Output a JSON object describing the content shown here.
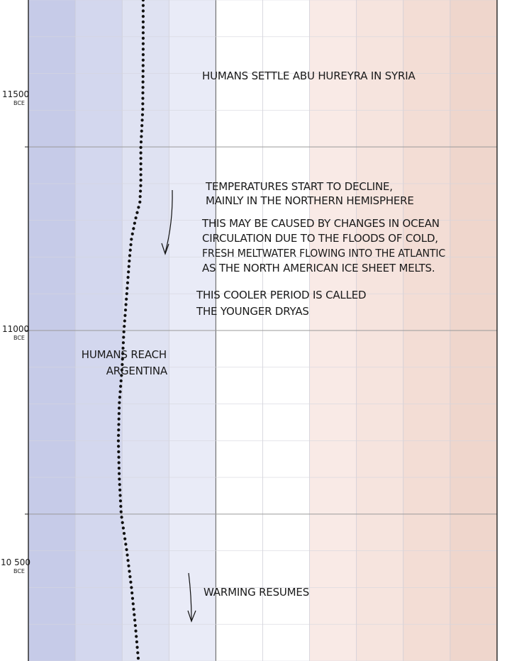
{
  "chart_data": {
    "type": "line",
    "title": "",
    "xlabel": "",
    "ylabel": "",
    "ylim": [
      10100,
      11900
    ],
    "xlim": [
      -4,
      6
    ],
    "y_ticks": [
      {
        "value": 11500,
        "label": "11500",
        "unit": "BCE"
      },
      {
        "value": 11000,
        "label": "11000",
        "unit": "BCE"
      },
      {
        "value": 10500,
        "label": "10 500",
        "unit": "BCE"
      }
    ],
    "band_colors": [
      "#c6cbe8",
      "#d3d7ee",
      "#dfe2f2",
      "#e9ebf7",
      "#ffffff",
      "#ffffff",
      "#f9eae6",
      "#f6e4de",
      "#f3ddd5",
      "#efd6cc"
    ],
    "line_color": "#111111",
    "series": [
      {
        "name": "",
        "points": [
          {
            "year": 11900,
            "t": -1.55
          },
          {
            "year": 11750,
            "t": -1.55
          },
          {
            "year": 11600,
            "t": -1.56
          },
          {
            "year": 11500,
            "t": -1.6
          },
          {
            "year": 11400,
            "t": -1.6
          },
          {
            "year": 11350,
            "t": -1.62
          },
          {
            "year": 11300,
            "t": -1.72
          },
          {
            "year": 11250,
            "t": -1.8
          },
          {
            "year": 11200,
            "t": -1.84
          },
          {
            "year": 11100,
            "t": -1.9
          },
          {
            "year": 11000,
            "t": -1.96
          },
          {
            "year": 10900,
            "t": -2.0
          },
          {
            "year": 10800,
            "t": -2.06
          },
          {
            "year": 10700,
            "t": -2.08
          },
          {
            "year": 10600,
            "t": -2.06
          },
          {
            "year": 10500,
            "t": -2.02
          },
          {
            "year": 10400,
            "t": -1.9
          },
          {
            "year": 10300,
            "t": -1.8
          },
          {
            "year": 10200,
            "t": -1.72
          },
          {
            "year": 10100,
            "t": -1.65
          }
        ]
      }
    ],
    "annotations": [
      {
        "id": "abu-hureyra",
        "lines": [
          "HUMANS SETTLE ABU HUREYRA IN SYRIA"
        ]
      },
      {
        "id": "decline",
        "lines": [
          "TEMPERATURES START TO DECLINE,",
          "MAINLY IN THE NORTHERN HEMISPHERE"
        ]
      },
      {
        "id": "ocean",
        "lines": [
          "THIS MAY BE CAUSED BY CHANGES IN OCEAN",
          "CIRCULATION DUE TO THE FLOODS OF COLD,",
          "FRESH MELTWATER FLOWING INTO THE ATLANTIC",
          "AS THE NORTH AMERICAN ICE SHEET MELTS."
        ]
      },
      {
        "id": "younger-dryas",
        "lines": [
          "THIS COOLER PERIOD IS CALLED",
          "THE YOUNGER DRYAS"
        ]
      },
      {
        "id": "argentina",
        "lines": [
          "HUMANS REACH",
          "ARGENTINA"
        ]
      },
      {
        "id": "warming",
        "lines": [
          "WARMING RESUMES"
        ]
      }
    ]
  }
}
